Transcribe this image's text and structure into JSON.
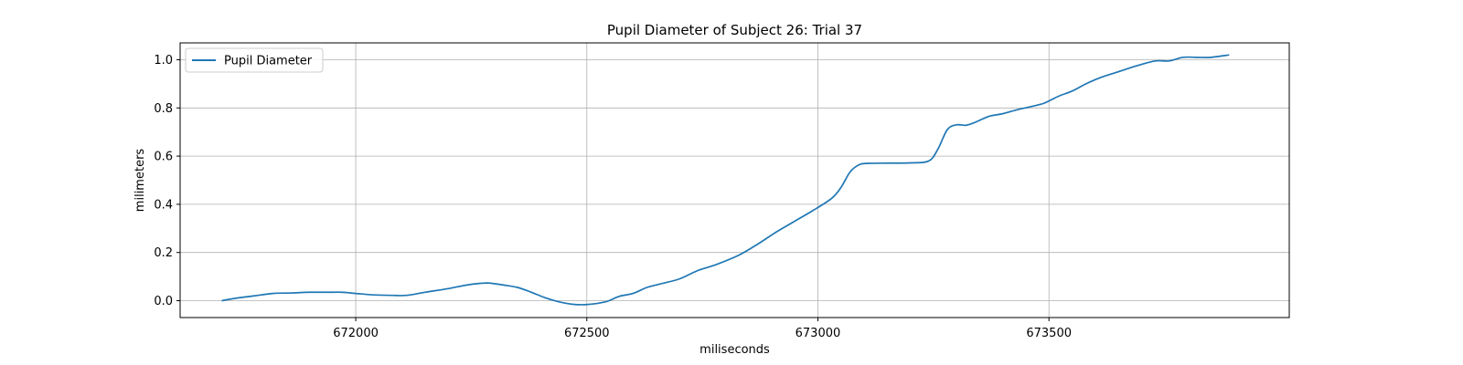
{
  "chart_data": {
    "type": "line",
    "title": "Pupil Diameter of Subject 26: Trial 37",
    "xlabel": "miliseconds",
    "ylabel": "milimeters",
    "xlim": [
      671620,
      674020
    ],
    "ylim": [
      -0.07,
      1.07
    ],
    "xticks": [
      672000,
      672500,
      673000,
      673500
    ],
    "yticks": [
      0.0,
      0.2,
      0.4,
      0.6,
      0.8,
      1.0
    ],
    "grid": true,
    "legend_position": "top-left",
    "line_color": "#1f77b4",
    "series": [
      {
        "name": "Pupil Diameter",
        "x": [
          671710,
          671740,
          671780,
          671820,
          671860,
          671900,
          671940,
          671970,
          672000,
          672040,
          672080,
          672110,
          672150,
          672200,
          672240,
          672270,
          672290,
          672320,
          672350,
          672380,
          672410,
          672440,
          672470,
          672500,
          672540,
          672570,
          672600,
          672630,
          672660,
          672700,
          672740,
          672780,
          672830,
          672870,
          672910,
          672950,
          672990,
          673030,
          673050,
          673070,
          673090,
          673110,
          673150,
          673200,
          673240,
          673260,
          673280,
          673300,
          673320,
          673340,
          673370,
          673400,
          673430,
          673460,
          673490,
          673520,
          673550,
          673580,
          673610,
          673650,
          673690,
          673730,
          673760,
          673790,
          673820,
          673850,
          673890
        ],
        "y": [
          0.0,
          0.01,
          0.02,
          0.03,
          0.032,
          0.035,
          0.035,
          0.035,
          0.03,
          0.024,
          0.022,
          0.022,
          0.035,
          0.05,
          0.065,
          0.072,
          0.073,
          0.065,
          0.055,
          0.035,
          0.012,
          -0.005,
          -0.015,
          -0.016,
          -0.005,
          0.018,
          0.03,
          0.055,
          0.07,
          0.09,
          0.125,
          0.15,
          0.19,
          0.235,
          0.285,
          0.33,
          0.375,
          0.425,
          0.47,
          0.535,
          0.565,
          0.57,
          0.571,
          0.572,
          0.58,
          0.63,
          0.71,
          0.73,
          0.728,
          0.74,
          0.765,
          0.776,
          0.792,
          0.805,
          0.82,
          0.848,
          0.87,
          0.9,
          0.925,
          0.95,
          0.975,
          0.995,
          0.995,
          1.01,
          1.01,
          1.01,
          1.02
        ]
      }
    ]
  }
}
